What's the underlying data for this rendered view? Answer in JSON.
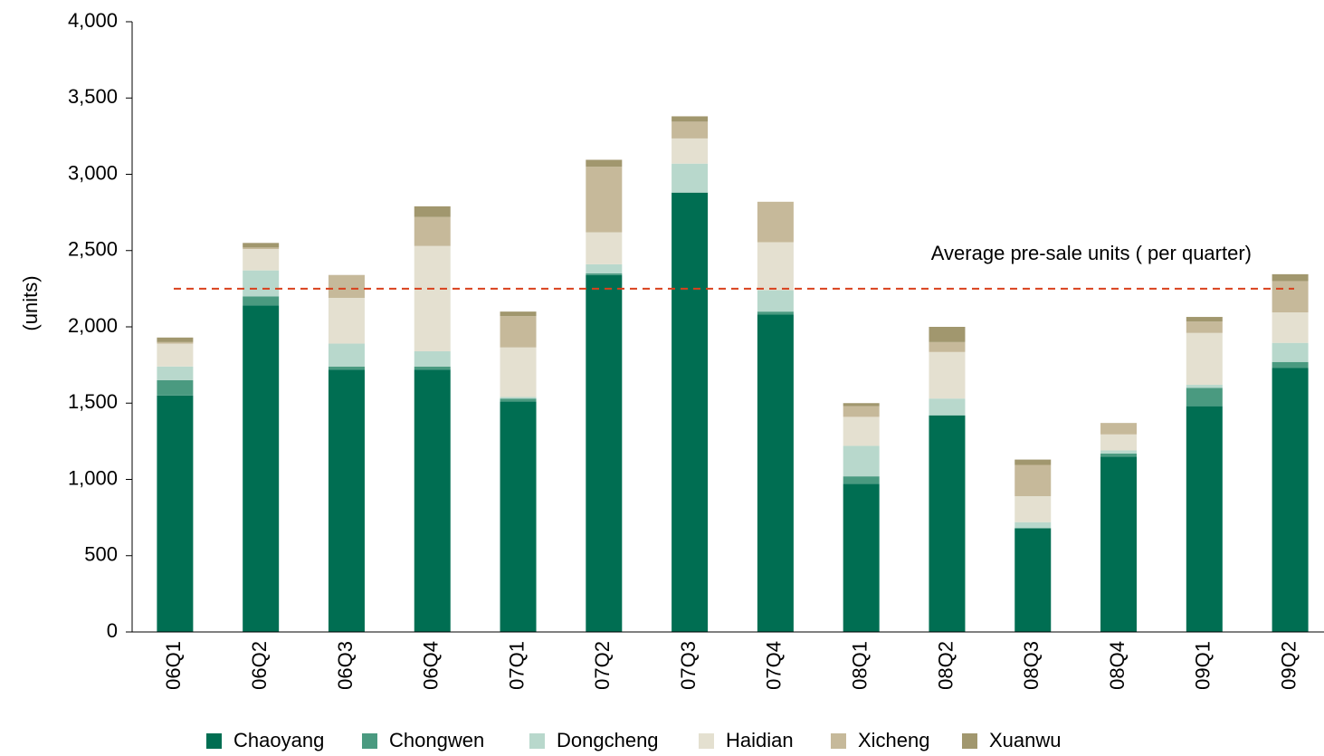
{
  "chart_data": {
    "type": "stacked_bar",
    "y_label": "(units)",
    "categories": [
      "06Q1",
      "06Q2",
      "06Q3",
      "06Q4",
      "07Q1",
      "07Q2",
      "07Q3",
      "07Q4",
      "08Q1",
      "08Q2",
      "08Q3",
      "08Q4",
      "09Q1",
      "09Q2"
    ],
    "series": [
      {
        "name": "Chaoyang",
        "color": "#006e52",
        "values": [
          1550,
          2140,
          1720,
          1720,
          1510,
          2340,
          2880,
          2080,
          970,
          1420,
          680,
          1150,
          1480,
          1730
        ]
      },
      {
        "name": "Chongwen",
        "color": "#4a9a80",
        "values": [
          100,
          60,
          20,
          20,
          20,
          10,
          0,
          20,
          50,
          0,
          0,
          20,
          120,
          40
        ]
      },
      {
        "name": "Dongcheng",
        "color": "#b8d8cc",
        "values": [
          90,
          170,
          150,
          100,
          10,
          60,
          190,
          140,
          200,
          110,
          40,
          20,
          20,
          125
        ]
      },
      {
        "name": "Haidian",
        "color": "#e4e0d0",
        "values": [
          150,
          140,
          300,
          690,
          325,
          210,
          165,
          315,
          190,
          305,
          170,
          105,
          340,
          200
        ]
      },
      {
        "name": "Xicheng",
        "color": "#c6b99a",
        "values": [
          10,
          10,
          150,
          190,
          205,
          430,
          110,
          265,
          70,
          65,
          205,
          75,
          75,
          205
        ]
      },
      {
        "name": "Xuanwu",
        "color": "#a1976e",
        "values": [
          30,
          30,
          0,
          70,
          30,
          45,
          35,
          0,
          20,
          100,
          35,
          0,
          30,
          45
        ]
      }
    ],
    "ylim": [
      0,
      4000
    ],
    "yticks": [
      0,
      500,
      {
        "value": 1000,
        "label": "1,000"
      },
      {
        "value": 1500,
        "label": "1,500"
      },
      {
        "value": 2000,
        "label": "2,000"
      },
      {
        "value": 2500,
        "label": "2,500"
      },
      {
        "value": 3000,
        "label": "3,000"
      },
      {
        "value": 3500,
        "label": "3,500"
      },
      {
        "value": 4000,
        "label": "4,000"
      }
    ],
    "reference_line": {
      "value": 2250,
      "label": "Average pre-sale units ( per quarter)",
      "color": "#d9401c"
    },
    "legend": "bottom"
  }
}
